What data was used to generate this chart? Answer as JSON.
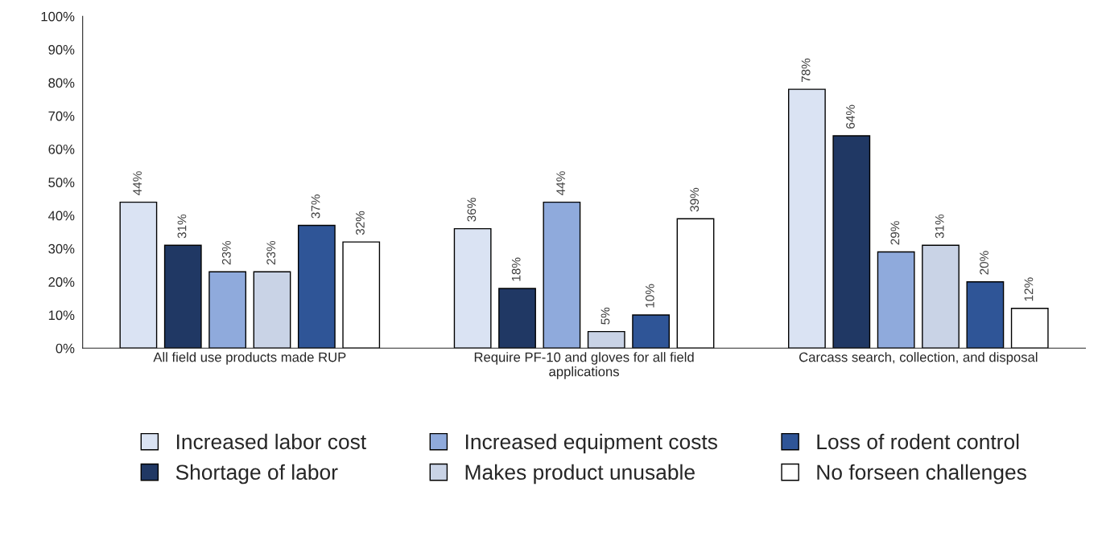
{
  "chart_data": {
    "type": "bar",
    "categories": [
      "All field use products made RUP",
      "Require PF-10 and gloves for all field\napplications",
      "Carcass search, collection, and disposal"
    ],
    "series": [
      {
        "name": "Increased labor cost",
        "color": "#dae3f3",
        "values": [
          44,
          36,
          78
        ],
        "value_labels": [
          "44%",
          "36%",
          "78%"
        ]
      },
      {
        "name": "Shortage of labor",
        "color": "#203864",
        "values": [
          31,
          18,
          64
        ],
        "value_labels": [
          "31%",
          "18%",
          "64%"
        ]
      },
      {
        "name": "Increased equipment costs",
        "color": "#8faadc",
        "values": [
          23,
          44,
          29
        ],
        "value_labels": [
          "23%",
          "44%",
          "29%"
        ]
      },
      {
        "name": "Makes product unusable",
        "color": "#c9d3e6",
        "values": [
          23,
          5,
          31
        ],
        "value_labels": [
          "23%",
          "5%",
          "31%"
        ]
      },
      {
        "name": "Loss of rodent control",
        "color": "#2f5597",
        "values": [
          37,
          10,
          20
        ],
        "value_labels": [
          "37%",
          "10%",
          "20%"
        ]
      },
      {
        "name": "No forseen challenges",
        "color": "#ffffff",
        "values": [
          32,
          39,
          12
        ],
        "value_labels": [
          "32%",
          "39%",
          "12%"
        ]
      }
    ],
    "ylim": [
      0,
      100
    ],
    "yticks": [
      {
        "value": 0,
        "label": "0%"
      },
      {
        "value": 10,
        "label": "10%"
      },
      {
        "value": 20,
        "label": "20%"
      },
      {
        "value": 30,
        "label": "30%"
      },
      {
        "value": 40,
        "label": "40%"
      },
      {
        "value": 50,
        "label": "50%"
      },
      {
        "value": 60,
        "label": "60%"
      },
      {
        "value": 70,
        "label": "70%"
      },
      {
        "value": 80,
        "label": "80%"
      },
      {
        "value": 90,
        "label": "90%"
      },
      {
        "value": 100,
        "label": "100%"
      }
    ],
    "grid": false,
    "legend": "bottom"
  }
}
